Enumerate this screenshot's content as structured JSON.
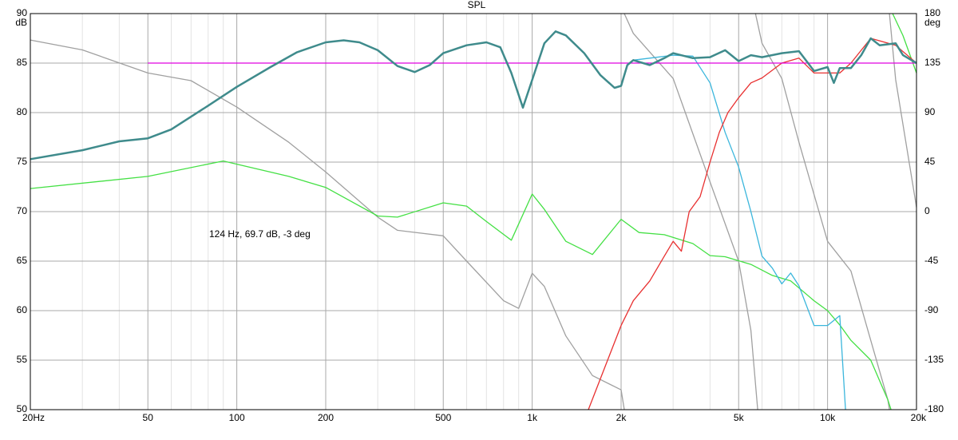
{
  "chart_data": {
    "type": "line",
    "title": "SPL",
    "y_label": "dB",
    "y2_label": "deg",
    "annotation": "124 Hz, 69.7 dB, -3 deg",
    "log_x": true,
    "grid": true,
    "xlim": [
      20,
      20000
    ],
    "ylim": [
      50,
      90
    ],
    "y2lim": [
      -180,
      180
    ],
    "xticks": [
      {
        "value": 20,
        "label": "20Hz"
      },
      50,
      100,
      200,
      500,
      {
        "value": 1000,
        "label": "1k"
      },
      {
        "value": 2000,
        "label": "2k"
      },
      {
        "value": 5000,
        "label": "5k"
      },
      {
        "value": 10000,
        "label": "10k"
      },
      {
        "value": 20000,
        "label": "20k"
      }
    ],
    "xminorticks": [
      30,
      40,
      60,
      70,
      80,
      90,
      300,
      400,
      600,
      700,
      800,
      900,
      3000,
      4000,
      6000,
      7000,
      8000,
      9000
    ],
    "yticks": [
      50,
      55,
      60,
      65,
      70,
      75,
      80,
      85,
      90
    ],
    "y2ticks": [
      -180,
      -135,
      -90,
      -45,
      0,
      45,
      90,
      135,
      180
    ],
    "series": [
      {
        "color": "#a0a0a0",
        "axis": "y2",
        "x": [
          20,
          30,
          50,
          70,
          100,
          150,
          200,
          300,
          350,
          500,
          600,
          800,
          900,
          1000,
          1100,
          1300,
          1600,
          2000,
          2050,
          null,
          2050,
          2200,
          3000,
          4000,
          5000,
          5500,
          5800,
          null,
          5700,
          6000,
          7000,
          8000,
          10000,
          12000,
          14000,
          16000,
          16200,
          null,
          16200,
          17000,
          20000
        ],
        "values": [
          156,
          147,
          126,
          119,
          95,
          63,
          36,
          -5,
          -17,
          -22,
          -45,
          -81,
          -88,
          -56,
          -68,
          -113,
          -149,
          -162,
          -180,
          null,
          180,
          162,
          121,
          27,
          -45,
          -108,
          -180,
          null,
          180,
          153,
          121,
          63,
          -27,
          -54,
          -117,
          -171,
          -180,
          null,
          180,
          120,
          4
        ]
      },
      {
        "color": "#44e044",
        "axis": "y2",
        "x": [
          20,
          50,
          90,
          150,
          200,
          300,
          350,
          500,
          600,
          700,
          850,
          1000,
          1100,
          1300,
          1600,
          2000,
          2300,
          2800,
          3500,
          4000,
          4500,
          5500,
          6500,
          7500,
          9000,
          10000,
          11000,
          12000,
          14000,
          16000,
          16400,
          null,
          16600,
          18000,
          20000
        ],
        "values": [
          21,
          32,
          46,
          32,
          22,
          -4,
          -5,
          8,
          5,
          -9,
          -26,
          16,
          2,
          -27,
          -39,
          -7,
          -19,
          -21,
          -29,
          -40,
          -41,
          -48,
          -58,
          -63,
          -81,
          -90,
          -103,
          -117,
          -135,
          -171,
          -180,
          null,
          180,
          160,
          126
        ]
      },
      {
        "color": "#3bb6dc",
        "x": [
          1500,
          1700,
          1900,
          2000,
          2100,
          2200,
          2500,
          3000,
          3500,
          4000,
          4500,
          5000,
          5500,
          6000,
          6500,
          7000,
          7500,
          8000,
          9000,
          10000,
          11000,
          11500
        ],
        "values": [
          86,
          83.8,
          82.5,
          82.7,
          84.8,
          85.3,
          85.5,
          85.8,
          85.7,
          83,
          78,
          74.5,
          70,
          65.5,
          64.3,
          62.7,
          63.8,
          62.5,
          58.5,
          58.5,
          59.5,
          50
        ]
      },
      {
        "color": "#e83030",
        "x": [
          1550,
          1800,
          2000,
          2200,
          2500,
          2800,
          3000,
          3200,
          3400,
          3700,
          4000,
          4300,
          4600,
          5000,
          5500,
          6000,
          7000,
          8000,
          9000,
          10000,
          11000,
          12000,
          14000,
          17000,
          20000
        ],
        "values": [
          50,
          55,
          58.5,
          61,
          63,
          65.5,
          67,
          66,
          70,
          71.5,
          75,
          78,
          80,
          81.5,
          83,
          83.5,
          85,
          85.5,
          84,
          84,
          84,
          85,
          87.5,
          86.8,
          85
        ]
      },
      {
        "color": "#e000e0",
        "x": [
          50,
          20000
        ],
        "values": [
          85,
          85
        ]
      },
      {
        "color": "#3f8b8c",
        "x": [
          20,
          30,
          40,
          50,
          60,
          80,
          100,
          130,
          160,
          200,
          230,
          260,
          300,
          350,
          400,
          450,
          500,
          600,
          700,
          780,
          850,
          930,
          1000,
          1100,
          1200,
          1300,
          1500,
          1700,
          1900,
          2000,
          2100,
          2200,
          2500,
          2800,
          3000,
          3500,
          4000,
          4500,
          5000,
          5500,
          6000,
          7000,
          8000,
          9000,
          10000,
          10500,
          11000,
          12000,
          13000,
          14000,
          15000,
          17000,
          18000,
          20000
        ],
        "values": [
          75.3,
          76.2,
          77.1,
          77.4,
          78.3,
          80.7,
          82.6,
          84.6,
          86.1,
          87.1,
          87.3,
          87.1,
          86.3,
          84.7,
          84.1,
          84.8,
          86,
          86.8,
          87.1,
          86.6,
          84,
          80.5,
          83.3,
          87,
          88.2,
          87.8,
          86,
          83.8,
          82.5,
          82.7,
          84.8,
          85.3,
          84.8,
          85.5,
          86,
          85.5,
          85.6,
          86.3,
          85.2,
          85.8,
          85.6,
          86,
          86.2,
          84.2,
          84.6,
          83,
          84.5,
          84.5,
          85.8,
          87.5,
          86.8,
          87,
          85.8,
          85
        ]
      }
    ]
  }
}
